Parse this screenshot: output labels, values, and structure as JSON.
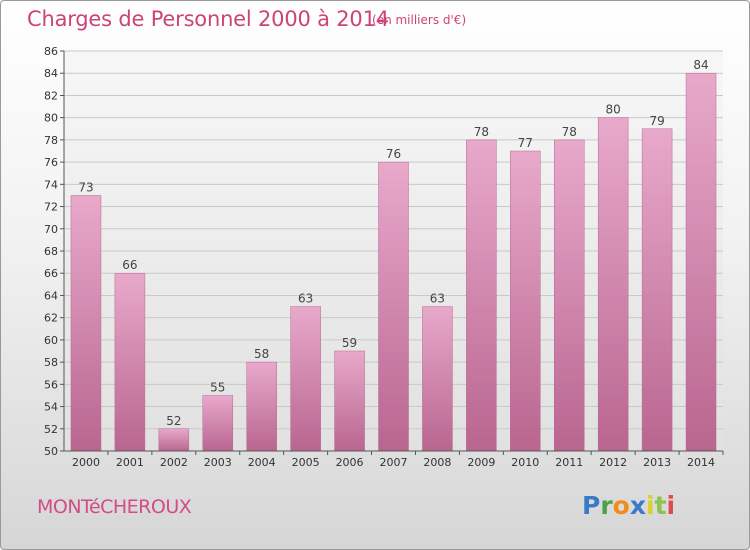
{
  "header": {
    "title": "Charges de Personnel 2000 à 2014",
    "subtitle": "(en milliers d'€)"
  },
  "footer": {
    "commune": "MONTéCHEROUX",
    "logo_letters": [
      {
        "ch": "P",
        "color": "#3a7ac8"
      },
      {
        "ch": "r",
        "color": "#4aa34a"
      },
      {
        "ch": "o",
        "color": "#f08c1e"
      },
      {
        "ch": "x",
        "color": "#3a7ac8"
      },
      {
        "ch": "i",
        "color": "#d8d22a"
      },
      {
        "ch": "t",
        "color": "#8cc34a"
      },
      {
        "ch": "i",
        "color": "#e04a4a"
      }
    ]
  },
  "chart_data": {
    "type": "bar",
    "categories": [
      "2000",
      "2001",
      "2002",
      "2003",
      "2004",
      "2005",
      "2006",
      "2007",
      "2008",
      "2009",
      "2010",
      "2011",
      "2012",
      "2013",
      "2014"
    ],
    "values": [
      73,
      66,
      52,
      55,
      58,
      63,
      59,
      76,
      63,
      78,
      77,
      78,
      80,
      79,
      84
    ],
    "data_labels": [
      "73",
      "66",
      "52",
      "55",
      "58",
      "63",
      "59",
      "76",
      "63",
      "78",
      "77",
      "78",
      "80",
      "79",
      "84"
    ],
    "ylim": [
      50,
      86
    ],
    "yticks": [
      50,
      52,
      54,
      56,
      58,
      60,
      62,
      64,
      66,
      68,
      70,
      72,
      74,
      76,
      78,
      80,
      82,
      84,
      86
    ],
    "grid": true,
    "bar_color": "#d98ab5",
    "bar_color_light": "#e8a9cb",
    "bar_color_dark": "#b9668f"
  }
}
